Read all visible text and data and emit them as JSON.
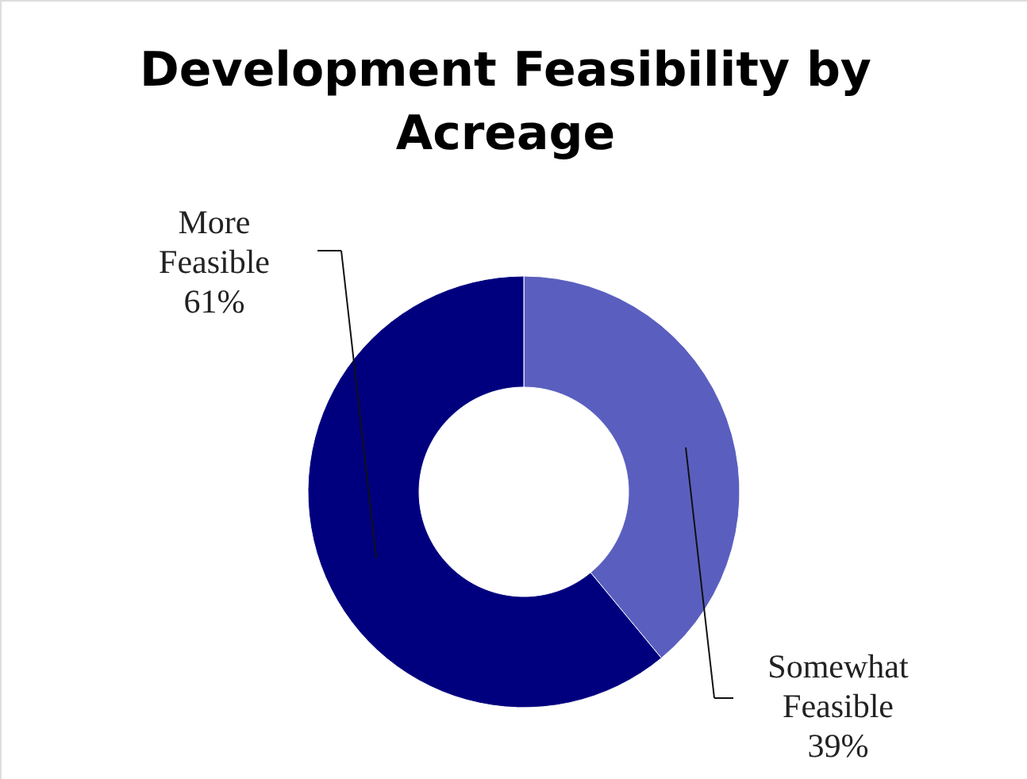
{
  "chart_data": {
    "type": "donut",
    "title": "Development Feasibility by Acreage",
    "categories": [
      "Somewhat Feasible",
      "More Feasible"
    ],
    "values": [
      39,
      61
    ],
    "colors": [
      "#5a5fbf",
      "#00007f"
    ],
    "value_labels": [
      "39%",
      "61%"
    ]
  }
}
